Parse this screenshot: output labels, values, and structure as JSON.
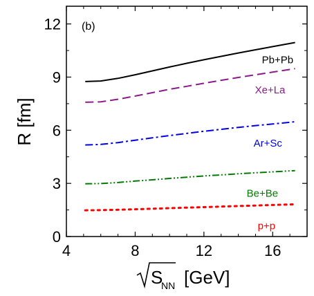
{
  "chart_data": {
    "type": "line",
    "panel_label": "(b)",
    "ylabel": "R [fm]",
    "xlabel_sqrt_term": "S",
    "xlabel_subscript": "NN",
    "xlabel_unit": "[GeV]",
    "xlim": [
      4,
      18
    ],
    "ylim": [
      0,
      13
    ],
    "xticks": [
      4,
      8,
      12,
      16
    ],
    "yticks": [
      0,
      3,
      6,
      9,
      12
    ],
    "x_minor_step": 1,
    "y_minor_step": 1.5,
    "grid": false,
    "legend": "inline labels at right end of each curve",
    "series": [
      {
        "name": "Pb+Pb",
        "color": "#000000",
        "dash": "solid",
        "x": [
          5.1,
          6.0,
          7.0,
          8.0,
          9.0,
          10.0,
          11.0,
          12.0,
          13.0,
          14.0,
          15.0,
          16.0,
          17.3
        ],
        "y": [
          8.75,
          8.78,
          8.93,
          9.13,
          9.35,
          9.57,
          9.78,
          9.98,
          10.17,
          10.36,
          10.54,
          10.72,
          10.95
        ]
      },
      {
        "name": "Xe+La",
        "color": "#8B1A8B",
        "dash": "dashed",
        "x": [
          5.1,
          6.0,
          7.0,
          8.0,
          9.0,
          10.0,
          11.0,
          12.0,
          13.0,
          14.0,
          15.0,
          16.0,
          17.3
        ],
        "y": [
          7.58,
          7.6,
          7.75,
          7.93,
          8.12,
          8.31,
          8.48,
          8.65,
          8.82,
          8.98,
          9.13,
          9.28,
          9.48
        ]
      },
      {
        "name": "Ar+Sc",
        "color": "#0000E0",
        "dash": "dashdot",
        "x": [
          5.1,
          6.0,
          7.0,
          8.0,
          9.0,
          10.0,
          11.0,
          12.0,
          13.0,
          14.0,
          15.0,
          16.0,
          17.3
        ],
        "y": [
          5.17,
          5.2,
          5.3,
          5.44,
          5.57,
          5.7,
          5.82,
          5.94,
          6.05,
          6.16,
          6.26,
          6.35,
          6.48
        ]
      },
      {
        "name": "Be+Be",
        "color": "#007A00",
        "dash": "dashdotdot",
        "x": [
          5.1,
          6.0,
          7.0,
          8.0,
          9.0,
          10.0,
          11.0,
          12.0,
          13.0,
          14.0,
          15.0,
          16.0,
          17.3
        ],
        "y": [
          2.98,
          2.99,
          3.05,
          3.13,
          3.2,
          3.28,
          3.35,
          3.42,
          3.48,
          3.54,
          3.6,
          3.65,
          3.72
        ]
      },
      {
        "name": "p+p",
        "color": "#FF0000",
        "dash": "dotted",
        "x": [
          5.1,
          6.0,
          7.0,
          8.0,
          9.0,
          10.0,
          11.0,
          12.0,
          13.0,
          14.0,
          15.0,
          16.0,
          17.3
        ],
        "y": [
          1.48,
          1.49,
          1.51,
          1.54,
          1.57,
          1.6,
          1.63,
          1.66,
          1.69,
          1.72,
          1.75,
          1.78,
          1.82
        ]
      }
    ]
  }
}
